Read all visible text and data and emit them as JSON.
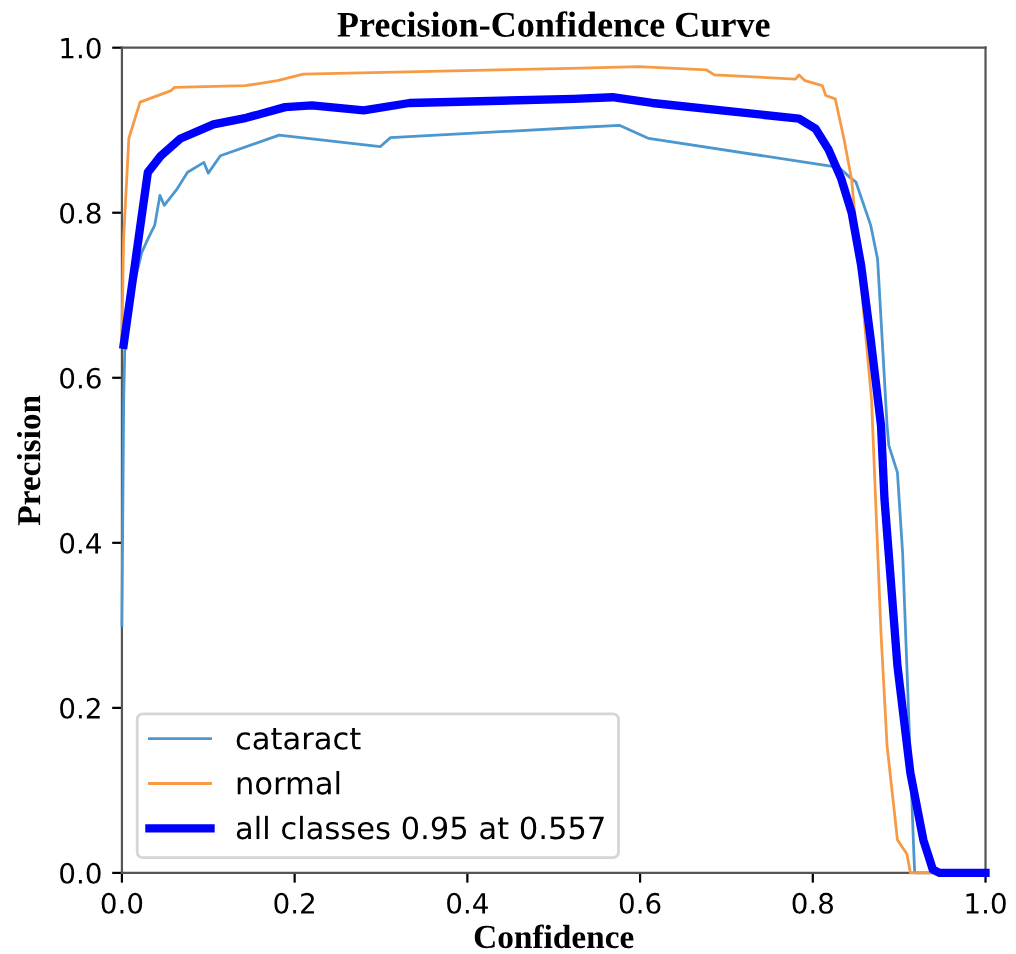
{
  "chart_data": {
    "type": "line",
    "title": "Precision-Confidence Curve",
    "xlabel": "Confidence",
    "ylabel": "Precision",
    "xlim": [
      0,
      1
    ],
    "ylim": [
      0,
      1
    ],
    "xticks": [
      {
        "value": 0,
        "label": "0.0"
      },
      {
        "value": 0.2,
        "label": "0.2"
      },
      {
        "value": 0.4,
        "label": "0.4"
      },
      {
        "value": 0.6,
        "label": "0.6"
      },
      {
        "value": 0.8,
        "label": "0.8"
      },
      {
        "value": 1,
        "label": "1.0"
      }
    ],
    "yticks": [
      {
        "value": 0,
        "label": "0.0"
      },
      {
        "value": 0.2,
        "label": "0.2"
      },
      {
        "value": 0.4,
        "label": "0.4"
      },
      {
        "value": 0.6,
        "label": "0.6"
      },
      {
        "value": 0.8,
        "label": "0.8"
      },
      {
        "value": 1,
        "label": "1.0"
      }
    ],
    "grid": false,
    "legend": "bottom left",
    "marker": "none",
    "line_style": "solid",
    "series": [
      {
        "name": "cataract",
        "color": "#4c97cf",
        "x": [
          0,
          0.002,
          0.004,
          0.023,
          0.03,
          0.038,
          0.044,
          0.049,
          0.064,
          0.076,
          0.095,
          0.1,
          0.114,
          0.182,
          0.299,
          0.311,
          0.523,
          0.576,
          0.61,
          0.83,
          0.845,
          0.85,
          0.867,
          0.875,
          0.879,
          0.886,
          0.888,
          0.898,
          0.904,
          0.917,
          0.918,
          1.0
        ],
        "values": [
          0.3,
          0.57,
          0.67,
          0.752,
          0.768,
          0.785,
          0.821,
          0.809,
          0.829,
          0.849,
          0.861,
          0.848,
          0.869,
          0.894,
          0.88,
          0.891,
          0.903,
          0.906,
          0.89,
          0.855,
          0.841,
          0.837,
          0.785,
          0.744,
          0.671,
          0.542,
          0.518,
          0.485,
          0.388,
          0.024,
          0,
          0
        ]
      },
      {
        "name": "normal",
        "color": "#f79a45",
        "x": [
          0,
          0.002,
          0.008,
          0.021,
          0.057,
          0.061,
          0.143,
          0.18,
          0.21,
          0.52,
          0.598,
          0.677,
          0.686,
          0.78,
          0.784,
          0.791,
          0.811,
          0.815,
          0.826,
          0.836,
          0.845,
          0.868,
          0.879,
          0.886,
          0.898,
          0.909,
          0.913,
          1.0
        ],
        "values": [
          0.65,
          0.77,
          0.89,
          0.934,
          0.948,
          0.952,
          0.954,
          0.96,
          0.968,
          0.975,
          0.977,
          0.973,
          0.967,
          0.962,
          0.967,
          0.96,
          0.954,
          0.942,
          0.938,
          0.89,
          0.84,
          0.574,
          0.29,
          0.154,
          0.04,
          0.023,
          0,
          0
        ]
      },
      {
        "name": "all classes 0.95 at 0.557",
        "color": "#0000ff",
        "x": [
          0.002,
          0.015,
          0.03,
          0.045,
          0.068,
          0.106,
          0.144,
          0.189,
          0.22,
          0.28,
          0.333,
          0.523,
          0.568,
          0.614,
          0.784,
          0.803,
          0.818,
          0.833,
          0.845,
          0.856,
          0.867,
          0.879,
          0.883,
          0.898,
          0.913,
          0.928,
          0.939,
          0.947,
          1.0
        ],
        "values": [
          0.64,
          0.737,
          0.849,
          0.869,
          0.89,
          0.907,
          0.915,
          0.928,
          0.93,
          0.924,
          0.933,
          0.938,
          0.94,
          0.933,
          0.914,
          0.902,
          0.877,
          0.841,
          0.8,
          0.736,
          0.647,
          0.542,
          0.453,
          0.251,
          0.121,
          0.04,
          0.004,
          0,
          0
        ]
      }
    ]
  }
}
